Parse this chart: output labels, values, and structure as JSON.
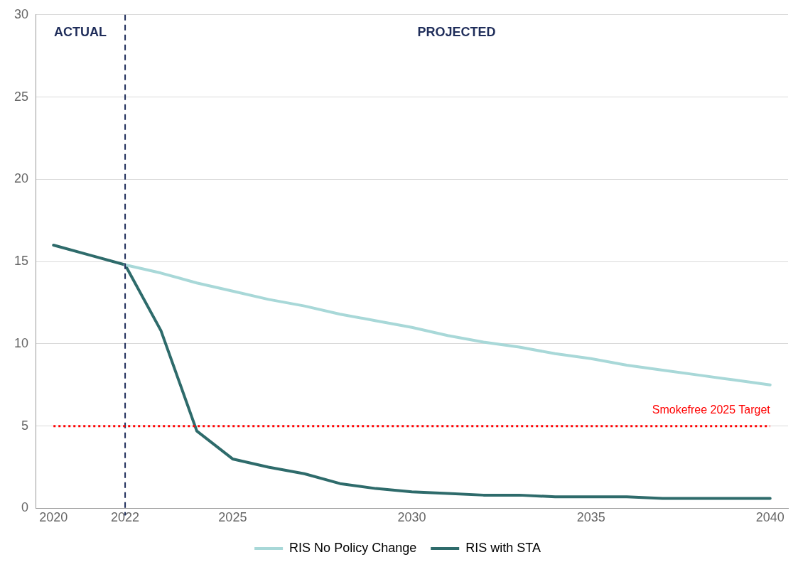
{
  "chart_data": {
    "type": "line",
    "x": [
      2020,
      2021,
      2022,
      2023,
      2024,
      2025,
      2026,
      2027,
      2028,
      2029,
      2030,
      2031,
      2032,
      2033,
      2034,
      2035,
      2036,
      2037,
      2038,
      2039,
      2040
    ],
    "series": [
      {
        "name": "RIS No Policy Change",
        "color": "#a8d8d8",
        "values": [
          null,
          null,
          14.8,
          14.3,
          13.7,
          13.2,
          12.7,
          12.3,
          11.8,
          11.4,
          11.0,
          10.5,
          10.1,
          9.8,
          9.4,
          9.1,
          8.7,
          8.4,
          8.1,
          7.8,
          7.5
        ]
      },
      {
        "name": "RIS with STA",
        "color": "#2e6b6b",
        "values": [
          16.0,
          15.4,
          14.8,
          10.8,
          4.7,
          3.0,
          2.5,
          2.1,
          1.5,
          1.2,
          1.0,
          0.9,
          0.8,
          0.8,
          0.7,
          0.7,
          0.7,
          0.6,
          0.6,
          0.6,
          0.6
        ]
      }
    ],
    "xlim": [
      2019.5,
      2040.5
    ],
    "xticks": [
      2020,
      2022,
      2025,
      2030,
      2035,
      2040
    ],
    "ylim": [
      0,
      30
    ],
    "yticks": [
      0,
      5,
      10,
      15,
      20,
      25,
      30
    ],
    "grid": "y",
    "legend": "bottom",
    "marker": "none",
    "line_style": "solid",
    "ref_lines": [
      {
        "axis": "x",
        "value": 2022,
        "label": null,
        "color": "#1f2d5a",
        "line_style": "dashed"
      },
      {
        "axis": "y",
        "value": 5,
        "label": "Smokefree 2025 Target",
        "color": "#ff0000",
        "line_style": "dotted"
      }
    ],
    "annotations": [
      "ACTUAL",
      "PROJECTED"
    ]
  }
}
